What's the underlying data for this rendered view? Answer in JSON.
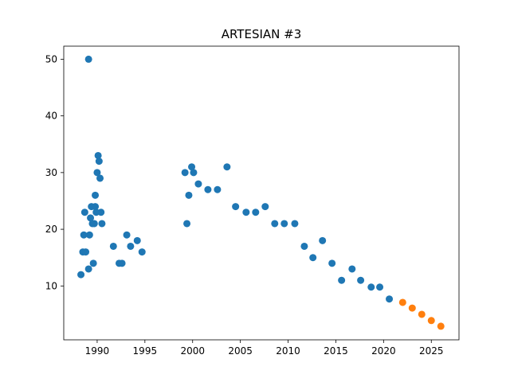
{
  "chart_data": {
    "type": "scatter",
    "title": "ARTESIAN #3",
    "xlabel": "",
    "ylabel": "",
    "xlim": [
      1986.5,
      2027.9
    ],
    "ylim": [
      0.5,
      52.3
    ],
    "xticks": [
      1990,
      1995,
      2000,
      2005,
      2010,
      2015,
      2020,
      2025
    ],
    "yticks": [
      10,
      20,
      30,
      40,
      50
    ],
    "grid": false,
    "legend": "none",
    "series": [
      {
        "color": "#1f77b4",
        "points": [
          [
            1988.3,
            12
          ],
          [
            1988.5,
            16
          ],
          [
            1988.6,
            19
          ],
          [
            1988.7,
            23
          ],
          [
            1988.8,
            16
          ],
          [
            1989.1,
            50
          ],
          [
            1989.1,
            13
          ],
          [
            1989.2,
            19
          ],
          [
            1989.3,
            22
          ],
          [
            1989.4,
            24
          ],
          [
            1989.5,
            21
          ],
          [
            1989.6,
            14
          ],
          [
            1989.7,
            21
          ],
          [
            1989.8,
            24
          ],
          [
            1989.8,
            26
          ],
          [
            1989.9,
            23
          ],
          [
            1990.0,
            30
          ],
          [
            1990.1,
            33
          ],
          [
            1990.2,
            32
          ],
          [
            1990.3,
            29
          ],
          [
            1990.4,
            23
          ],
          [
            1990.5,
            21
          ],
          [
            1991.7,
            17
          ],
          [
            1992.3,
            14
          ],
          [
            1992.6,
            14
          ],
          [
            1993.1,
            19
          ],
          [
            1993.5,
            17
          ],
          [
            1994.2,
            18
          ],
          [
            1994.7,
            16
          ],
          [
            1999.2,
            30
          ],
          [
            1999.4,
            21
          ],
          [
            1999.6,
            26
          ],
          [
            1999.9,
            31
          ],
          [
            2000.1,
            30
          ],
          [
            2000.6,
            28
          ],
          [
            2001.6,
            27
          ],
          [
            2002.6,
            27
          ],
          [
            2003.6,
            31
          ],
          [
            2004.5,
            24
          ],
          [
            2005.6,
            23
          ],
          [
            2006.6,
            23
          ],
          [
            2007.6,
            24
          ],
          [
            2008.6,
            21
          ],
          [
            2009.6,
            21
          ],
          [
            2010.7,
            21
          ],
          [
            2011.7,
            17
          ],
          [
            2012.6,
            15
          ],
          [
            2013.6,
            18
          ],
          [
            2014.6,
            14
          ],
          [
            2015.6,
            11
          ],
          [
            2016.7,
            13
          ],
          [
            2017.6,
            11
          ],
          [
            2018.7,
            9.8
          ],
          [
            2019.6,
            9.8
          ],
          [
            2020.6,
            7.7
          ]
        ]
      },
      {
        "color": "#ff7f0e",
        "points": [
          [
            2022,
            7.1
          ],
          [
            2023,
            6.1
          ],
          [
            2024,
            5.0
          ],
          [
            2025,
            3.9
          ],
          [
            2026,
            2.9
          ]
        ]
      }
    ]
  }
}
